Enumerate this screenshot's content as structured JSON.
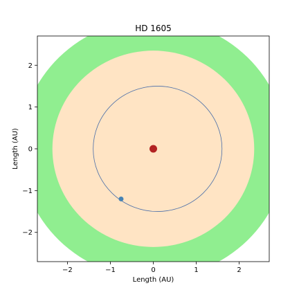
{
  "chart_data": {
    "type": "scatter",
    "title": "HD 1605",
    "xlabel": "Length (AU)",
    "ylabel": "Length (AU)",
    "xlim": [
      -2.7,
      2.7
    ],
    "ylim": [
      -2.7,
      2.7
    ],
    "xticks": [
      {
        "value": -2,
        "label": "−2"
      },
      {
        "value": -1,
        "label": "−1"
      },
      {
        "value": 0,
        "label": "0"
      },
      {
        "value": 1,
        "label": "1"
      },
      {
        "value": 2,
        "label": "2"
      }
    ],
    "yticks": [
      {
        "value": -2,
        "label": "−2"
      },
      {
        "value": -1,
        "label": "−1"
      },
      {
        "value": 0,
        "label": "0"
      },
      {
        "value": 1,
        "label": "1"
      },
      {
        "value": 2,
        "label": "2"
      }
    ],
    "grid": false,
    "regions": [
      {
        "name": "outer-zone",
        "center": [
          0,
          0
        ],
        "radius": 3.1,
        "color": "#90ee90"
      },
      {
        "name": "inner-zone",
        "center": [
          0,
          0
        ],
        "radius": 2.35,
        "color": "#ffe4c4"
      }
    ],
    "orbit": {
      "center": [
        0.1,
        0
      ],
      "rx": 1.5,
      "ry": 1.5,
      "color": "#4a6ea9"
    },
    "star": {
      "x": 0,
      "y": 0,
      "color": "#b22222"
    },
    "planet": {
      "x": -0.75,
      "y": -1.2,
      "color": "#4682b4"
    }
  }
}
